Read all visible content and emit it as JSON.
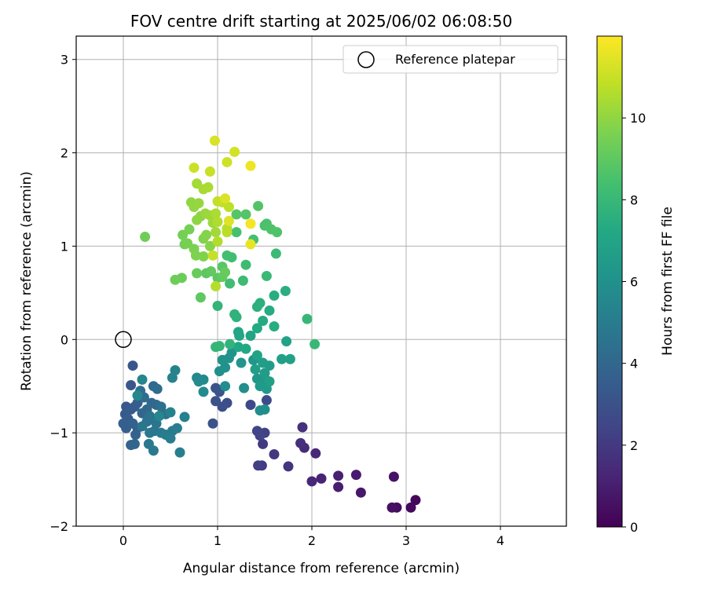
{
  "chart_data": {
    "type": "scatter",
    "title": "FOV centre drift starting at 2025/06/02 06:08:50",
    "xlabel": "Angular distance from reference (arcmin)",
    "ylabel": "Rotation from reference (arcmin)",
    "xlim": [
      -0.5,
      4.7
    ],
    "ylim": [
      -2.0,
      3.25
    ],
    "x_ticks": [
      0,
      1,
      2,
      3,
      4
    ],
    "y_ticks": [
      -2,
      -1,
      0,
      1,
      2,
      3
    ],
    "x_tick_labels": [
      "0",
      "1",
      "2",
      "3",
      "4"
    ],
    "y_tick_labels": [
      "−2",
      "−1",
      "0",
      "1",
      "2",
      "3"
    ],
    "grid": true,
    "legend": {
      "placement": "top-right",
      "entries": [
        "Reference platepar"
      ]
    },
    "reference_point": {
      "x": 0,
      "y": 0
    },
    "colorbar": {
      "label": "Hours from first FF file",
      "colormap": "viridis",
      "range": [
        0,
        12
      ],
      "ticks": [
        0,
        2,
        4,
        6,
        8,
        10
      ]
    },
    "points": [
      {
        "x": 3.1,
        "y": -1.72,
        "t": 0.2
      },
      {
        "x": 3.05,
        "y": -1.8,
        "t": 0.3
      },
      {
        "x": 2.9,
        "y": -1.8,
        "t": 0.4
      },
      {
        "x": 2.85,
        "y": -1.8,
        "t": 0.5
      },
      {
        "x": 2.87,
        "y": -1.47,
        "t": 0.6
      },
      {
        "x": 2.52,
        "y": -1.64,
        "t": 0.8
      },
      {
        "x": 2.47,
        "y": -1.45,
        "t": 0.9
      },
      {
        "x": 2.28,
        "y": -1.58,
        "t": 1.0
      },
      {
        "x": 2.28,
        "y": -1.46,
        "t": 1.1
      },
      {
        "x": 2.1,
        "y": -1.49,
        "t": 1.2
      },
      {
        "x": 2.0,
        "y": -1.52,
        "t": 1.3
      },
      {
        "x": 2.04,
        "y": -1.22,
        "t": 1.4
      },
      {
        "x": 1.92,
        "y": -1.16,
        "t": 1.5
      },
      {
        "x": 1.88,
        "y": -1.11,
        "t": 1.6
      },
      {
        "x": 1.9,
        "y": -0.94,
        "t": 1.7
      },
      {
        "x": 1.75,
        "y": -1.36,
        "t": 1.8
      },
      {
        "x": 1.6,
        "y": -1.23,
        "t": 1.9
      },
      {
        "x": 1.48,
        "y": -1.12,
        "t": 2.0
      },
      {
        "x": 1.47,
        "y": -1.35,
        "t": 2.1
      },
      {
        "x": 1.43,
        "y": -1.35,
        "t": 2.2
      },
      {
        "x": 1.5,
        "y": -1.0,
        "t": 2.3
      },
      {
        "x": 1.45,
        "y": -1.03,
        "t": 2.4
      },
      {
        "x": 1.42,
        "y": -0.98,
        "t": 2.5
      },
      {
        "x": 1.35,
        "y": -0.7,
        "t": 2.6
      },
      {
        "x": 1.52,
        "y": -0.65,
        "t": 2.7
      },
      {
        "x": 1.1,
        "y": -0.68,
        "t": 2.8
      },
      {
        "x": 1.05,
        "y": -0.72,
        "t": 2.9
      },
      {
        "x": 0.98,
        "y": -0.66,
        "t": 3.0
      },
      {
        "x": 0.95,
        "y": -0.9,
        "t": 3.05
      },
      {
        "x": 0.98,
        "y": -0.52,
        "t": 3.1
      },
      {
        "x": 1.02,
        "y": -0.56,
        "t": 3.15
      },
      {
        "x": 0.1,
        "y": -0.28,
        "t": 3.2
      },
      {
        "x": 0.08,
        "y": -0.49,
        "t": 3.25
      },
      {
        "x": 0.03,
        "y": -0.72,
        "t": 3.3
      },
      {
        "x": 0.02,
        "y": -0.8,
        "t": 3.35
      },
      {
        "x": 0.05,
        "y": -0.85,
        "t": 3.4
      },
      {
        "x": 0.08,
        "y": -0.75,
        "t": 3.45
      },
      {
        "x": 0.12,
        "y": -0.72,
        "t": 3.5
      },
      {
        "x": 0.15,
        "y": -0.68,
        "t": 3.55
      },
      {
        "x": 0.0,
        "y": -0.9,
        "t": 3.6
      },
      {
        "x": 0.03,
        "y": -0.95,
        "t": 3.65
      },
      {
        "x": 0.1,
        "y": -0.9,
        "t": 3.7
      },
      {
        "x": 0.15,
        "y": -0.95,
        "t": 3.75
      },
      {
        "x": 0.13,
        "y": -1.02,
        "t": 3.8
      },
      {
        "x": 0.08,
        "y": -1.13,
        "t": 3.85
      },
      {
        "x": 0.12,
        "y": -1.12,
        "t": 3.9
      },
      {
        "x": 0.2,
        "y": -0.79,
        "t": 3.95
      },
      {
        "x": 0.25,
        "y": -0.75,
        "t": 4.0
      },
      {
        "x": 0.3,
        "y": -0.68,
        "t": 4.05
      },
      {
        "x": 0.35,
        "y": -0.7,
        "t": 4.1
      },
      {
        "x": 0.32,
        "y": -0.5,
        "t": 4.15
      },
      {
        "x": 0.36,
        "y": -0.53,
        "t": 4.2
      },
      {
        "x": 0.22,
        "y": -0.62,
        "t": 4.25
      },
      {
        "x": 0.18,
        "y": -0.55,
        "t": 4.3
      },
      {
        "x": 0.4,
        "y": -0.72,
        "t": 4.35
      },
      {
        "x": 0.45,
        "y": -0.8,
        "t": 4.4
      },
      {
        "x": 0.28,
        "y": -0.82,
        "t": 4.45
      },
      {
        "x": 0.25,
        "y": -0.88,
        "t": 4.5
      },
      {
        "x": 0.3,
        "y": -0.85,
        "t": 4.55
      },
      {
        "x": 0.35,
        "y": -0.9,
        "t": 4.6
      },
      {
        "x": 0.2,
        "y": -0.93,
        "t": 4.65
      },
      {
        "x": 0.33,
        "y": -0.98,
        "t": 4.7
      },
      {
        "x": 0.28,
        "y": -1.0,
        "t": 4.75
      },
      {
        "x": 0.27,
        "y": -1.12,
        "t": 4.8
      },
      {
        "x": 0.32,
        "y": -1.19,
        "t": 4.85
      },
      {
        "x": 0.4,
        "y": -1.0,
        "t": 4.9
      },
      {
        "x": 0.45,
        "y": -1.02,
        "t": 4.95
      },
      {
        "x": 0.52,
        "y": -0.98,
        "t": 5.0
      },
      {
        "x": 0.5,
        "y": -1.06,
        "t": 5.05
      },
      {
        "x": 0.57,
        "y": -0.95,
        "t": 5.1
      },
      {
        "x": 0.6,
        "y": -1.21,
        "t": 5.15
      },
      {
        "x": 0.65,
        "y": -0.83,
        "t": 5.2
      },
      {
        "x": 0.5,
        "y": -0.78,
        "t": 5.25
      },
      {
        "x": 0.55,
        "y": -0.33,
        "t": 5.3
      },
      {
        "x": 0.52,
        "y": -0.41,
        "t": 5.35
      },
      {
        "x": 0.2,
        "y": -0.43,
        "t": 5.4
      },
      {
        "x": 0.38,
        "y": -0.82,
        "t": 5.45
      },
      {
        "x": 0.15,
        "y": -0.6,
        "t": 5.5
      },
      {
        "x": 0.78,
        "y": -0.41,
        "t": 5.55
      },
      {
        "x": 0.85,
        "y": -0.43,
        "t": 5.6
      },
      {
        "x": 0.8,
        "y": -0.45,
        "t": 5.65
      },
      {
        "x": 0.85,
        "y": -0.56,
        "t": 5.7
      },
      {
        "x": 1.08,
        "y": -0.5,
        "t": 5.75
      },
      {
        "x": 1.5,
        "y": -0.75,
        "t": 5.8
      },
      {
        "x": 1.45,
        "y": -0.76,
        "t": 5.85
      },
      {
        "x": 1.28,
        "y": -0.52,
        "t": 5.9
      },
      {
        "x": 1.02,
        "y": -0.34,
        "t": 5.95
      },
      {
        "x": 1.08,
        "y": -0.3,
        "t": 6.0
      },
      {
        "x": 1.12,
        "y": -0.2,
        "t": 6.05
      },
      {
        "x": 1.05,
        "y": -0.22,
        "t": 6.1
      },
      {
        "x": 1.15,
        "y": -0.14,
        "t": 6.15
      },
      {
        "x": 1.25,
        "y": -0.25,
        "t": 6.2
      },
      {
        "x": 1.38,
        "y": -0.22,
        "t": 6.25
      },
      {
        "x": 1.42,
        "y": -0.42,
        "t": 6.3
      },
      {
        "x": 1.47,
        "y": -0.46,
        "t": 6.35
      },
      {
        "x": 1.52,
        "y": -0.44,
        "t": 6.4
      },
      {
        "x": 1.45,
        "y": -0.5,
        "t": 6.45
      },
      {
        "x": 1.52,
        "y": -0.53,
        "t": 6.5
      },
      {
        "x": 1.55,
        "y": -0.28,
        "t": 6.55
      },
      {
        "x": 1.5,
        "y": -0.36,
        "t": 6.6
      },
      {
        "x": 1.48,
        "y": -0.25,
        "t": 6.65
      },
      {
        "x": 1.4,
        "y": -0.32,
        "t": 6.7
      },
      {
        "x": 1.55,
        "y": -0.45,
        "t": 6.75
      },
      {
        "x": 1.68,
        "y": -0.21,
        "t": 6.8
      },
      {
        "x": 1.77,
        "y": -0.21,
        "t": 6.85
      },
      {
        "x": 1.73,
        "y": -0.02,
        "t": 6.9
      },
      {
        "x": 1.42,
        "y": -0.17,
        "t": 6.95
      },
      {
        "x": 1.35,
        "y": 0.04,
        "t": 7.0
      },
      {
        "x": 1.22,
        "y": 0.08,
        "t": 7.05
      },
      {
        "x": 1.23,
        "y": 0.04,
        "t": 7.1
      },
      {
        "x": 1.22,
        "y": -0.08,
        "t": 7.15
      },
      {
        "x": 1.3,
        "y": -0.1,
        "t": 7.2
      },
      {
        "x": 1.42,
        "y": 0.12,
        "t": 7.25
      },
      {
        "x": 1.48,
        "y": 0.2,
        "t": 7.3
      },
      {
        "x": 1.55,
        "y": 0.31,
        "t": 7.35
      },
      {
        "x": 1.6,
        "y": 0.14,
        "t": 7.4
      },
      {
        "x": 1.6,
        "y": 0.47,
        "t": 7.45
      },
      {
        "x": 1.72,
        "y": 0.52,
        "t": 7.5
      },
      {
        "x": 1.45,
        "y": 0.39,
        "t": 7.55
      },
      {
        "x": 1.42,
        "y": 0.35,
        "t": 7.6
      },
      {
        "x": 1.2,
        "y": 0.24,
        "t": 7.65
      },
      {
        "x": 1.18,
        "y": 0.27,
        "t": 7.7
      },
      {
        "x": 1.13,
        "y": -0.05,
        "t": 7.75
      },
      {
        "x": 1.0,
        "y": 0.36,
        "t": 7.8
      },
      {
        "x": 1.02,
        "y": -0.07,
        "t": 7.85
      },
      {
        "x": 0.98,
        "y": -0.08,
        "t": 7.9
      },
      {
        "x": 1.95,
        "y": 0.22,
        "t": 7.95
      },
      {
        "x": 2.03,
        "y": -0.05,
        "t": 8.0
      },
      {
        "x": 1.52,
        "y": 0.68,
        "t": 8.05
      },
      {
        "x": 1.62,
        "y": 0.92,
        "t": 8.1
      },
      {
        "x": 1.27,
        "y": 0.63,
        "t": 8.15
      },
      {
        "x": 1.3,
        "y": 0.8,
        "t": 8.2
      },
      {
        "x": 1.13,
        "y": 0.6,
        "t": 8.25
      },
      {
        "x": 1.15,
        "y": 0.88,
        "t": 8.3
      },
      {
        "x": 1.1,
        "y": 0.9,
        "t": 8.35
      },
      {
        "x": 1.38,
        "y": 1.07,
        "t": 8.4
      },
      {
        "x": 1.2,
        "y": 1.15,
        "t": 8.45
      },
      {
        "x": 1.5,
        "y": 1.22,
        "t": 8.5
      },
      {
        "x": 1.52,
        "y": 1.24,
        "t": 8.55
      },
      {
        "x": 1.57,
        "y": 1.18,
        "t": 8.6
      },
      {
        "x": 1.63,
        "y": 1.15,
        "t": 8.65
      },
      {
        "x": 1.43,
        "y": 1.43,
        "t": 8.7
      },
      {
        "x": 1.3,
        "y": 1.34,
        "t": 8.75
      },
      {
        "x": 1.2,
        "y": 1.34,
        "t": 8.8
      },
      {
        "x": 1.05,
        "y": 0.78,
        "t": 8.85
      },
      {
        "x": 1.0,
        "y": 0.66,
        "t": 8.9
      },
      {
        "x": 0.88,
        "y": 0.71,
        "t": 8.95
      },
      {
        "x": 0.82,
        "y": 0.45,
        "t": 9.0
      },
      {
        "x": 0.93,
        "y": 0.73,
        "t": 9.05
      },
      {
        "x": 1.05,
        "y": 0.67,
        "t": 9.1
      },
      {
        "x": 1.08,
        "y": 0.72,
        "t": 9.15
      },
      {
        "x": 0.78,
        "y": 0.71,
        "t": 9.2
      },
      {
        "x": 0.62,
        "y": 0.66,
        "t": 9.25
      },
      {
        "x": 0.55,
        "y": 0.64,
        "t": 9.3
      },
      {
        "x": 0.23,
        "y": 1.1,
        "t": 9.35
      },
      {
        "x": 0.65,
        "y": 1.02,
        "t": 9.4
      },
      {
        "x": 0.63,
        "y": 1.12,
        "t": 9.45
      },
      {
        "x": 0.7,
        "y": 1.18,
        "t": 9.5
      },
      {
        "x": 0.68,
        "y": 1.03,
        "t": 9.55
      },
      {
        "x": 0.75,
        "y": 0.97,
        "t": 9.6
      },
      {
        "x": 0.77,
        "y": 0.9,
        "t": 9.65
      },
      {
        "x": 0.85,
        "y": 0.89,
        "t": 9.7
      },
      {
        "x": 0.85,
        "y": 1.08,
        "t": 9.75
      },
      {
        "x": 0.88,
        "y": 1.12,
        "t": 9.8
      },
      {
        "x": 0.92,
        "y": 1.0,
        "t": 9.85
      },
      {
        "x": 0.82,
        "y": 1.32,
        "t": 9.9
      },
      {
        "x": 0.78,
        "y": 1.28,
        "t": 9.95
      },
      {
        "x": 0.72,
        "y": 1.47,
        "t": 10.0
      },
      {
        "x": 0.75,
        "y": 1.42,
        "t": 10.05
      },
      {
        "x": 0.8,
        "y": 1.46,
        "t": 10.1
      },
      {
        "x": 0.87,
        "y": 1.35,
        "t": 10.15
      },
      {
        "x": 0.92,
        "y": 1.33,
        "t": 10.2
      },
      {
        "x": 0.95,
        "y": 1.25,
        "t": 10.25
      },
      {
        "x": 0.98,
        "y": 1.15,
        "t": 10.3
      },
      {
        "x": 0.78,
        "y": 1.67,
        "t": 10.35
      },
      {
        "x": 0.85,
        "y": 1.61,
        "t": 10.4
      },
      {
        "x": 0.9,
        "y": 1.63,
        "t": 10.45
      },
      {
        "x": 0.98,
        "y": 1.35,
        "t": 10.5
      },
      {
        "x": 1.0,
        "y": 1.26,
        "t": 10.55
      },
      {
        "x": 1.0,
        "y": 1.05,
        "t": 10.6
      },
      {
        "x": 0.98,
        "y": 0.57,
        "t": 10.65
      },
      {
        "x": 1.1,
        "y": 1.19,
        "t": 10.7
      },
      {
        "x": 1.1,
        "y": 1.15,
        "t": 10.75
      },
      {
        "x": 1.12,
        "y": 1.42,
        "t": 10.8
      },
      {
        "x": 1.05,
        "y": 1.47,
        "t": 10.85
      },
      {
        "x": 1.0,
        "y": 1.48,
        "t": 10.9
      },
      {
        "x": 0.95,
        "y": 0.9,
        "t": 10.95
      },
      {
        "x": 0.92,
        "y": 1.8,
        "t": 11.0
      },
      {
        "x": 0.75,
        "y": 1.84,
        "t": 11.05
      },
      {
        "x": 1.1,
        "y": 1.9,
        "t": 11.1
      },
      {
        "x": 1.18,
        "y": 2.01,
        "t": 11.2
      },
      {
        "x": 0.97,
        "y": 2.13,
        "t": 11.3
      },
      {
        "x": 1.08,
        "y": 1.51,
        "t": 11.35
      },
      {
        "x": 1.12,
        "y": 1.27,
        "t": 11.4
      },
      {
        "x": 1.35,
        "y": 1.02,
        "t": 11.6
      },
      {
        "x": 1.35,
        "y": 1.86,
        "t": 11.7
      },
      {
        "x": 1.35,
        "y": 1.24,
        "t": 11.8
      }
    ]
  }
}
